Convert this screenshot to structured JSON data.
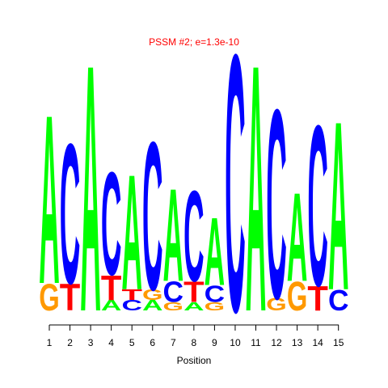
{
  "chart_data": {
    "type": "sequence-logo",
    "title": "PSSM #2; e=1.3e-10",
    "xlabel": "Position",
    "ylabel": "",
    "colors": {
      "A": "#00ff00",
      "C": "#0000ff",
      "G": "#ff9900",
      "T": "#ff0000"
    },
    "title_color": "#ff0000",
    "positions": [
      {
        "position": "1",
        "letters": [
          {
            "base": "G",
            "height": 1.3
          },
          {
            "base": "A",
            "height": 8.2
          }
        ]
      },
      {
        "position": "2",
        "letters": [
          {
            "base": "T",
            "height": 1.3
          },
          {
            "base": "C",
            "height": 6.8
          }
        ]
      },
      {
        "position": "3",
        "letters": [
          {
            "base": "A",
            "height": 12.0
          }
        ]
      },
      {
        "position": "4",
        "letters": [
          {
            "base": "A",
            "height": 0.5
          },
          {
            "base": "T",
            "height": 1.2
          },
          {
            "base": "C",
            "height": 5.0
          }
        ]
      },
      {
        "position": "5",
        "letters": [
          {
            "base": "C",
            "height": 0.5
          },
          {
            "base": "T",
            "height": 0.5
          },
          {
            "base": "A",
            "height": 5.6
          }
        ]
      },
      {
        "position": "6",
        "letters": [
          {
            "base": "A",
            "height": 0.5
          },
          {
            "base": "G",
            "height": 0.5
          },
          {
            "base": "C",
            "height": 7.2
          }
        ]
      },
      {
        "position": "7",
        "letters": [
          {
            "base": "G",
            "height": 0.4
          },
          {
            "base": "C",
            "height": 1.0
          },
          {
            "base": "A",
            "height": 4.5
          }
        ]
      },
      {
        "position": "8",
        "letters": [
          {
            "base": "A",
            "height": 0.4
          },
          {
            "base": "T",
            "height": 1.0
          },
          {
            "base": "C",
            "height": 4.4
          }
        ]
      },
      {
        "position": "9",
        "letters": [
          {
            "base": "G",
            "height": 0.4
          },
          {
            "base": "C",
            "height": 0.8
          },
          {
            "base": "A",
            "height": 3.3
          }
        ]
      },
      {
        "position": "10",
        "letters": [
          {
            "base": "C",
            "height": 12.5
          }
        ]
      },
      {
        "position": "11",
        "letters": [
          {
            "base": "A",
            "height": 12.0
          }
        ]
      },
      {
        "position": "12",
        "letters": [
          {
            "base": "G",
            "height": 0.6
          },
          {
            "base": "C",
            "height": 9.2
          }
        ]
      },
      {
        "position": "13",
        "letters": [
          {
            "base": "G",
            "height": 1.4
          },
          {
            "base": "A",
            "height": 4.3
          }
        ]
      },
      {
        "position": "14",
        "letters": [
          {
            "base": "T",
            "height": 1.2
          },
          {
            "base": "C",
            "height": 7.8
          }
        ]
      },
      {
        "position": "15",
        "letters": [
          {
            "base": "C",
            "height": 1.0
          },
          {
            "base": "A",
            "height": 8.2
          }
        ]
      }
    ]
  }
}
